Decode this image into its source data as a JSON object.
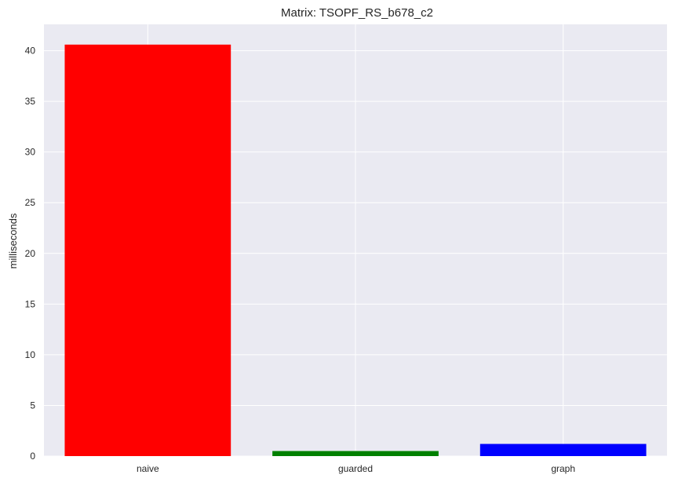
{
  "chart_data": {
    "type": "bar",
    "title": "Matrix: TSOPF_RS_b678_c2",
    "xlabel": "",
    "ylabel": "milliseconds",
    "categories": [
      "naive",
      "guarded",
      "graph"
    ],
    "values": [
      40.6,
      0.5,
      1.2
    ],
    "colors": [
      "#ff0000",
      "#008000",
      "#0000ff"
    ],
    "ylim": [
      0,
      42.6
    ],
    "yticks": [
      0,
      5,
      10,
      15,
      20,
      25,
      30,
      35,
      40
    ],
    "grid": true,
    "background": "#eaeaf2",
    "grid_color": "#ffffff"
  }
}
